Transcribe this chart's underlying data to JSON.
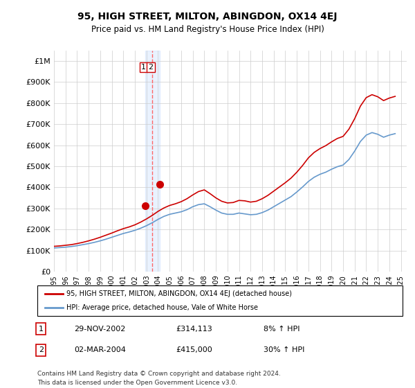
{
  "title": "95, HIGH STREET, MILTON, ABINGDON, OX14 4EJ",
  "subtitle": "Price paid vs. HM Land Registry's House Price Index (HPI)",
  "legend_line1": "95, HIGH STREET, MILTON, ABINGDON, OX14 4EJ (detached house)",
  "legend_line2": "HPI: Average price, detached house, Vale of White Horse",
  "footer_line1": "Contains HM Land Registry data © Crown copyright and database right 2024.",
  "footer_line2": "This data is licensed under the Open Government Licence v3.0.",
  "transactions": [
    {
      "num": "1",
      "date": "29-NOV-2002",
      "price": "£314,113",
      "hpi": "8% ↑ HPI"
    },
    {
      "num": "2",
      "date": "02-MAR-2004",
      "price": "£415,000",
      "hpi": "30% ↑ HPI"
    }
  ],
  "sale1_x": 2002.91,
  "sale1_y": 314113,
  "sale2_x": 2004.17,
  "sale2_y": 415000,
  "vline_x": 2003.5,
  "vline_color": "#ff6666",
  "vline_style": "--",
  "vshade_x1": 2002.91,
  "vshade_x2": 2004.17,
  "vshade_color": "#aaccff",
  "vshade_alpha": 0.25,
  "red_line_color": "#cc0000",
  "blue_line_color": "#6699cc",
  "background_color": "#ffffff",
  "grid_color": "#cccccc",
  "ylim": [
    0,
    1050000
  ],
  "xlim": [
    1995,
    2025.5
  ],
  "yticks": [
    0,
    100000,
    200000,
    300000,
    400000,
    500000,
    600000,
    700000,
    800000,
    900000,
    1000000
  ],
  "ytick_labels": [
    "£0",
    "£100K",
    "£200K",
    "£300K",
    "£400K",
    "£500K",
    "£600K",
    "£700K",
    "£800K",
    "£900K",
    "£1M"
  ],
  "xticks": [
    1995,
    1996,
    1997,
    1998,
    1999,
    2000,
    2001,
    2002,
    2003,
    2004,
    2005,
    2006,
    2007,
    2008,
    2009,
    2010,
    2011,
    2012,
    2013,
    2014,
    2015,
    2016,
    2017,
    2018,
    2019,
    2020,
    2021,
    2022,
    2023,
    2024,
    2025
  ],
  "hpi_years": [
    1995,
    1995.5,
    1996,
    1996.5,
    1997,
    1997.5,
    1998,
    1998.5,
    1999,
    1999.5,
    2000,
    2000.5,
    2001,
    2001.5,
    2002,
    2002.5,
    2003,
    2003.5,
    2004,
    2004.5,
    2005,
    2005.5,
    2006,
    2006.5,
    2007,
    2007.5,
    2008,
    2008.5,
    2009,
    2009.5,
    2010,
    2010.5,
    2011,
    2011.5,
    2012,
    2012.5,
    2013,
    2013.5,
    2014,
    2014.5,
    2015,
    2015.5,
    2016,
    2016.5,
    2017,
    2017.5,
    2018,
    2018.5,
    2019,
    2019.5,
    2020,
    2020.5,
    2021,
    2021.5,
    2022,
    2022.5,
    2023,
    2023.5,
    2024,
    2024.5
  ],
  "hpi_values": [
    112000,
    114000,
    116000,
    119000,
    123000,
    128000,
    133000,
    139000,
    146000,
    154000,
    163000,
    172000,
    181000,
    188000,
    196000,
    206000,
    218000,
    232000,
    248000,
    262000,
    272000,
    278000,
    284000,
    294000,
    308000,
    318000,
    322000,
    308000,
    292000,
    278000,
    272000,
    272000,
    278000,
    274000,
    270000,
    272000,
    280000,
    292000,
    308000,
    324000,
    340000,
    356000,
    378000,
    402000,
    428000,
    448000,
    462000,
    472000,
    486000,
    498000,
    506000,
    532000,
    572000,
    618000,
    648000,
    660000,
    652000,
    638000,
    648000,
    655000
  ],
  "red_years": [
    1995,
    1995.5,
    1996,
    1996.5,
    1997,
    1997.5,
    1998,
    1998.5,
    1999,
    1999.5,
    2000,
    2000.5,
    2001,
    2001.5,
    2002,
    2002.5,
    2003,
    2003.5,
    2004,
    2004.5,
    2005,
    2005.5,
    2006,
    2006.5,
    2007,
    2007.5,
    2008,
    2008.5,
    2009,
    2009.5,
    2010,
    2010.5,
    2011,
    2011.5,
    2012,
    2012.5,
    2013,
    2013.5,
    2014,
    2014.5,
    2015,
    2015.5,
    2016,
    2016.5,
    2017,
    2017.5,
    2018,
    2018.5,
    2019,
    2019.5,
    2020,
    2020.5,
    2021,
    2021.5,
    2022,
    2022.5,
    2023,
    2023.5,
    2024,
    2024.5
  ],
  "red_values": [
    120000,
    122000,
    125000,
    128000,
    133000,
    139000,
    146000,
    154000,
    163000,
    173000,
    183000,
    194000,
    204000,
    212000,
    222000,
    235000,
    250000,
    267000,
    286000,
    302000,
    314000,
    322000,
    332000,
    346000,
    364000,
    380000,
    388000,
    370000,
    350000,
    334000,
    326000,
    328000,
    338000,
    336000,
    330000,
    334000,
    346000,
    362000,
    382000,
    402000,
    422000,
    444000,
    472000,
    504000,
    540000,
    566000,
    584000,
    598000,
    616000,
    632000,
    642000,
    676000,
    726000,
    786000,
    826000,
    840000,
    830000,
    812000,
    824000,
    832000
  ]
}
